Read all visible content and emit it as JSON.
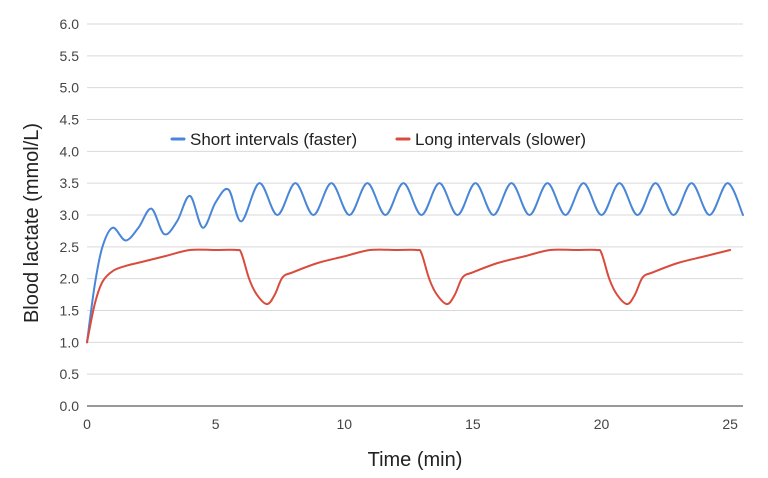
{
  "chart_data": {
    "type": "line",
    "title": "",
    "xlabel": "Time (min)",
    "ylabel": "Blood lactate (mmol/L)",
    "xlim": [
      0,
      25.5
    ],
    "ylim": [
      0,
      6.0
    ],
    "x_ticks": [
      0,
      5,
      10,
      15,
      20,
      25
    ],
    "x_tick_labels": [
      "0",
      "5",
      "10",
      "15",
      "20",
      "25"
    ],
    "y_ticks": [
      0,
      0.5,
      1.0,
      1.5,
      2.0,
      2.5,
      3.0,
      3.5,
      4.0,
      4.5,
      5.0,
      5.5,
      6.0
    ],
    "y_tick_labels": [
      "0.0",
      "0.5",
      "1.0",
      "1.5",
      "2.0",
      "2.5",
      "3.0",
      "3.5",
      "4.0",
      "4.5",
      "5.0",
      "5.5",
      "6.0"
    ],
    "grid": true,
    "legend_position": "top-center",
    "series": [
      {
        "name": "Short intervals (faster)",
        "color": "#4a86d8",
        "points": [
          [
            0,
            1.0
          ],
          [
            0.3,
            1.9
          ],
          [
            0.6,
            2.5
          ],
          [
            1.0,
            2.8
          ],
          [
            1.5,
            2.6
          ],
          [
            2.0,
            2.8
          ],
          [
            2.5,
            3.1
          ],
          [
            3.0,
            2.7
          ],
          [
            3.5,
            2.9
          ],
          [
            4.0,
            3.3
          ],
          [
            4.5,
            2.8
          ],
          [
            5.0,
            3.2
          ],
          [
            5.5,
            3.4
          ],
          [
            6.0,
            2.9
          ],
          [
            6.7,
            3.5
          ],
          [
            7.4,
            3.0
          ],
          [
            8.1,
            3.5
          ],
          [
            8.8,
            3.0
          ],
          [
            9.5,
            3.5
          ],
          [
            10.2,
            3.0
          ],
          [
            10.9,
            3.5
          ],
          [
            11.6,
            3.0
          ],
          [
            12.3,
            3.5
          ],
          [
            13.0,
            3.0
          ],
          [
            13.7,
            3.5
          ],
          [
            14.4,
            3.0
          ],
          [
            15.1,
            3.5
          ],
          [
            15.8,
            3.0
          ],
          [
            16.5,
            3.5
          ],
          [
            17.2,
            3.0
          ],
          [
            17.9,
            3.5
          ],
          [
            18.6,
            3.0
          ],
          [
            19.3,
            3.5
          ],
          [
            20.0,
            3.0
          ],
          [
            20.7,
            3.5
          ],
          [
            21.4,
            3.0
          ],
          [
            22.1,
            3.5
          ],
          [
            22.8,
            3.0
          ],
          [
            23.5,
            3.5
          ],
          [
            24.2,
            3.0
          ],
          [
            24.9,
            3.5
          ],
          [
            25.5,
            3.0
          ]
        ]
      },
      {
        "name": "Long intervals (slower)",
        "color": "#d94c3d",
        "points": [
          [
            0,
            1.0
          ],
          [
            0.3,
            1.6
          ],
          [
            0.6,
            1.95
          ],
          [
            1.0,
            2.12
          ],
          [
            1.5,
            2.2
          ],
          [
            2.0,
            2.25
          ],
          [
            3.0,
            2.35
          ],
          [
            4.0,
            2.45
          ],
          [
            5.0,
            2.45
          ],
          [
            5.8,
            2.45
          ],
          [
            6.0,
            2.4
          ],
          [
            6.3,
            2.0
          ],
          [
            6.6,
            1.75
          ],
          [
            7.0,
            1.6
          ],
          [
            7.3,
            1.75
          ],
          [
            7.6,
            2.02
          ],
          [
            8.0,
            2.1
          ],
          [
            9.0,
            2.25
          ],
          [
            10.0,
            2.35
          ],
          [
            11.0,
            2.45
          ],
          [
            12.0,
            2.45
          ],
          [
            12.8,
            2.45
          ],
          [
            13.0,
            2.4
          ],
          [
            13.3,
            2.0
          ],
          [
            13.6,
            1.75
          ],
          [
            14.0,
            1.6
          ],
          [
            14.3,
            1.75
          ],
          [
            14.6,
            2.02
          ],
          [
            15.0,
            2.1
          ],
          [
            16.0,
            2.25
          ],
          [
            17.0,
            2.35
          ],
          [
            18.0,
            2.45
          ],
          [
            19.0,
            2.45
          ],
          [
            19.8,
            2.45
          ],
          [
            20.0,
            2.4
          ],
          [
            20.3,
            2.0
          ],
          [
            20.6,
            1.75
          ],
          [
            21.0,
            1.6
          ],
          [
            21.3,
            1.75
          ],
          [
            21.6,
            2.02
          ],
          [
            22.0,
            2.1
          ],
          [
            23.0,
            2.25
          ],
          [
            24.0,
            2.35
          ],
          [
            25.0,
            2.45
          ]
        ]
      }
    ]
  }
}
